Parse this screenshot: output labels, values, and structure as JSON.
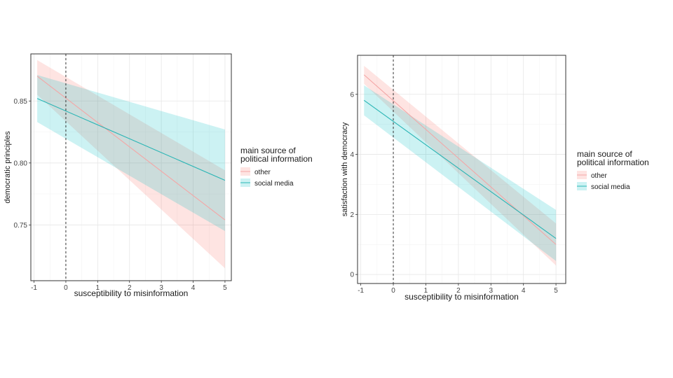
{
  "chart_data": [
    {
      "type": "line",
      "xlabel": "susceptibility to misinformation",
      "ylabel": "democratic principles",
      "xlim": [
        -1.1,
        5.2
      ],
      "ylim": [
        0.705,
        0.888
      ],
      "xticks": [
        -1,
        0,
        1,
        2,
        3,
        4,
        5
      ],
      "yticks": [
        0.75,
        0.8,
        0.85
      ],
      "ytick_labels": [
        "0.75",
        "0.80",
        "0.85"
      ],
      "grid": true,
      "reference_line_x": 0,
      "legend": {
        "title_lines": [
          "main source of",
          "political information"
        ],
        "placement": "right"
      },
      "series": [
        {
          "name": "other",
          "color": "#f4a6a6",
          "ribbon_color": "#f8766d",
          "x": [
            -0.9,
            5
          ],
          "y": [
            0.87,
            0.754
          ],
          "ci_low": [
            0.855,
            0.715
          ],
          "ci_high": [
            0.883,
            0.794
          ]
        },
        {
          "name": "social media",
          "color": "#2ab5b5",
          "ribbon_color": "#00bfc4",
          "x": [
            -0.9,
            5
          ],
          "y": [
            0.852,
            0.786
          ],
          "ci_low": [
            0.833,
            0.745
          ],
          "ci_high": [
            0.871,
            0.827
          ]
        }
      ]
    },
    {
      "type": "line",
      "xlabel": "susceptibility to misinformation",
      "ylabel": "satisfaction with democracy",
      "xlim": [
        -1.1,
        5.3
      ],
      "ylim": [
        -0.3,
        7.3
      ],
      "xticks": [
        -1,
        0,
        1,
        2,
        3,
        4,
        5
      ],
      "yticks": [
        0,
        2,
        4,
        6
      ],
      "ytick_labels": [
        "0",
        "2",
        "4",
        "6"
      ],
      "grid": true,
      "reference_line_x": 0,
      "legend": {
        "title_lines": [
          "main source of",
          "political information"
        ],
        "placement": "right"
      },
      "series": [
        {
          "name": "other",
          "color": "#f4a6a6",
          "ribbon_color": "#f8766d",
          "x": [
            -0.9,
            5
          ],
          "y": [
            6.65,
            1.0
          ],
          "ci_low": [
            6.35,
            0.3
          ],
          "ci_high": [
            6.95,
            1.7
          ]
        },
        {
          "name": "social media",
          "color": "#2ab5b5",
          "ribbon_color": "#00bfc4",
          "x": [
            -0.9,
            5
          ],
          "y": [
            5.8,
            1.2
          ],
          "ci_low": [
            5.3,
            0.45
          ],
          "ci_high": [
            6.3,
            2.15
          ]
        }
      ]
    }
  ]
}
